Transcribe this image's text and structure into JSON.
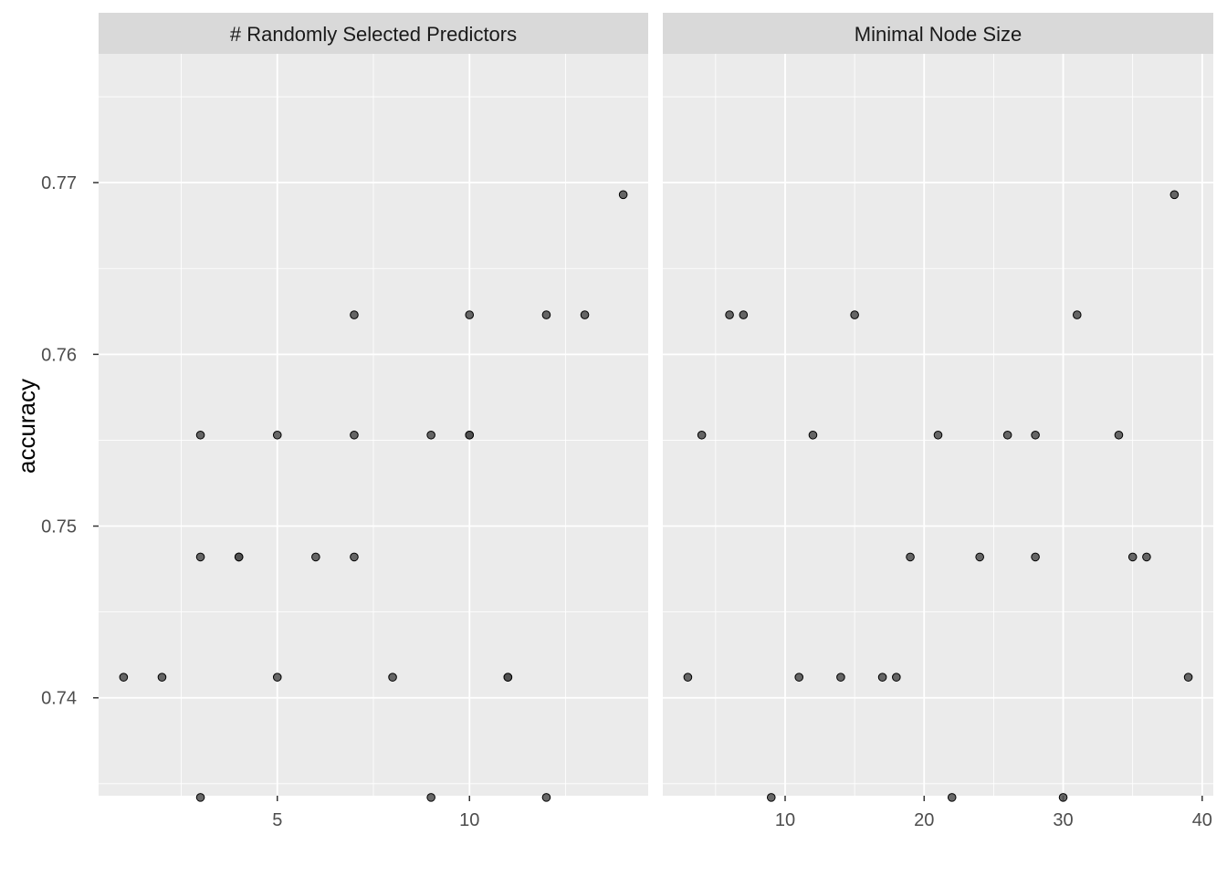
{
  "chart_data": {
    "type": "scatter",
    "ylabel": "accuracy",
    "ylim": [
      0.7343,
      0.7775
    ],
    "y_ticks": [
      0.74,
      0.75,
      0.76,
      0.77
    ],
    "y_tick_labels": [
      "0.74",
      "0.75",
      "0.76",
      "0.77"
    ],
    "y_minor": [
      0.735,
      0.745,
      0.755,
      0.765,
      0.775
    ],
    "grid": true,
    "theme": {
      "panel_bg": "#ebebeb",
      "strip_bg": "#d9d9d9",
      "grid": "#ffffff",
      "point_fill": "#4d4d4d",
      "point_stroke": "#000000"
    },
    "facets": [
      {
        "title": "# Randomly Selected Predictors",
        "xlim": [
          0.35,
          14.65
        ],
        "x_ticks": [
          5,
          10
        ],
        "x_tick_labels": [
          "5",
          "10"
        ],
        "x_minor": [
          2.5,
          7.5,
          12.5
        ],
        "points": [
          {
            "x": 1,
            "y": 0.7412
          },
          {
            "x": 2,
            "y": 0.7412
          },
          {
            "x": 3,
            "y": 0.7553
          },
          {
            "x": 3,
            "y": 0.7482
          },
          {
            "x": 3,
            "y": 0.7342
          },
          {
            "x": 4,
            "y": 0.7482
          },
          {
            "x": 4,
            "y": 0.7482
          },
          {
            "x": 5,
            "y": 0.7553
          },
          {
            "x": 5,
            "y": 0.7412
          },
          {
            "x": 6,
            "y": 0.7482
          },
          {
            "x": 7,
            "y": 0.7623
          },
          {
            "x": 7,
            "y": 0.7553
          },
          {
            "x": 7,
            "y": 0.7482
          },
          {
            "x": 8,
            "y": 0.7412
          },
          {
            "x": 9,
            "y": 0.7553
          },
          {
            "x": 9,
            "y": 0.7342
          },
          {
            "x": 10,
            "y": 0.7623
          },
          {
            "x": 10,
            "y": 0.7553
          },
          {
            "x": 10,
            "y": 0.7553
          },
          {
            "x": 11,
            "y": 0.7412
          },
          {
            "x": 11,
            "y": 0.7412
          },
          {
            "x": 12,
            "y": 0.7623
          },
          {
            "x": 12,
            "y": 0.7342
          },
          {
            "x": 13,
            "y": 0.7623
          },
          {
            "x": 14,
            "y": 0.7693
          }
        ]
      },
      {
        "title": "Minimal Node Size",
        "xlim": [
          1.2,
          40.8
        ],
        "x_ticks": [
          10,
          20,
          30,
          40
        ],
        "x_tick_labels": [
          "10",
          "20",
          "30",
          "40"
        ],
        "x_minor": [
          5,
          15,
          25,
          35
        ],
        "points": [
          {
            "x": 3,
            "y": 0.7412
          },
          {
            "x": 4,
            "y": 0.7553
          },
          {
            "x": 6,
            "y": 0.7623
          },
          {
            "x": 7,
            "y": 0.7623
          },
          {
            "x": 9,
            "y": 0.7342
          },
          {
            "x": 11,
            "y": 0.7412
          },
          {
            "x": 12,
            "y": 0.7553
          },
          {
            "x": 14,
            "y": 0.7412
          },
          {
            "x": 15,
            "y": 0.7623
          },
          {
            "x": 17,
            "y": 0.7412
          },
          {
            "x": 18,
            "y": 0.7412
          },
          {
            "x": 19,
            "y": 0.7482
          },
          {
            "x": 21,
            "y": 0.7553
          },
          {
            "x": 22,
            "y": 0.7342
          },
          {
            "x": 24,
            "y": 0.7482
          },
          {
            "x": 26,
            "y": 0.7553
          },
          {
            "x": 28,
            "y": 0.7553
          },
          {
            "x": 28,
            "y": 0.7482
          },
          {
            "x": 30,
            "y": 0.7342
          },
          {
            "x": 31,
            "y": 0.7623
          },
          {
            "x": 34,
            "y": 0.7553
          },
          {
            "x": 35,
            "y": 0.7482
          },
          {
            "x": 36,
            "y": 0.7482
          },
          {
            "x": 38,
            "y": 0.7693
          },
          {
            "x": 39,
            "y": 0.7412
          }
        ]
      }
    ]
  }
}
